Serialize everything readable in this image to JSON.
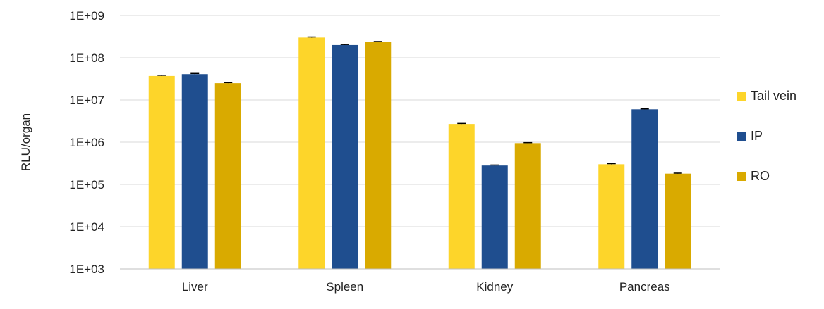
{
  "chart_data": {
    "type": "bar",
    "title": "",
    "xlabel": "",
    "ylabel": "RLU/organ",
    "yscale": "log",
    "ylim": [
      1000,
      1000000000
    ],
    "yticks": [
      "1E+03",
      "1E+04",
      "1E+05",
      "1E+06",
      "1E+07",
      "1E+08",
      "1E+09"
    ],
    "grid": true,
    "legend_position": "right",
    "categories": [
      "Liver",
      "Spleen",
      "Kidney",
      "Pancreas"
    ],
    "series": [
      {
        "name": "Tail vein",
        "color": "#FDD52A",
        "values": [
          37000000,
          300000000,
          2700000,
          300000
        ],
        "errors": [
          1500000,
          10000000,
          80000,
          10000
        ]
      },
      {
        "name": "IP",
        "color": "#1F4E8F",
        "values": [
          41000000,
          200000000,
          280000,
          6000000
        ],
        "errors": [
          1500000,
          6000000,
          8000,
          150000
        ]
      },
      {
        "name": "RO",
        "color": "#D9AA00",
        "values": [
          25000000,
          235000000,
          950000,
          180000
        ],
        "errors": [
          800000,
          7000000,
          25000,
          5000
        ]
      }
    ]
  }
}
